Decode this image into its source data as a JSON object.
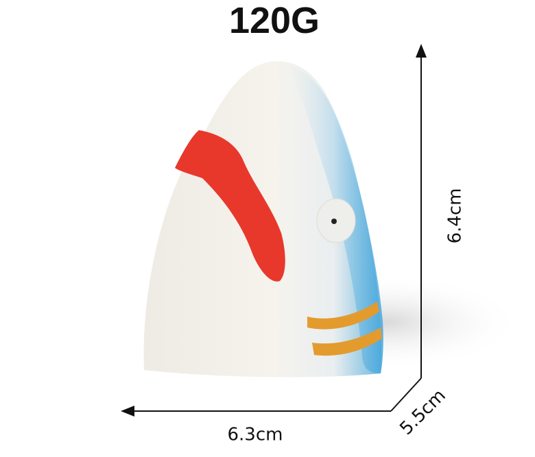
{
  "title": "120G",
  "dimensions": {
    "height": "6.4cm",
    "width": "6.3cm",
    "depth": "5.5cm"
  }
}
